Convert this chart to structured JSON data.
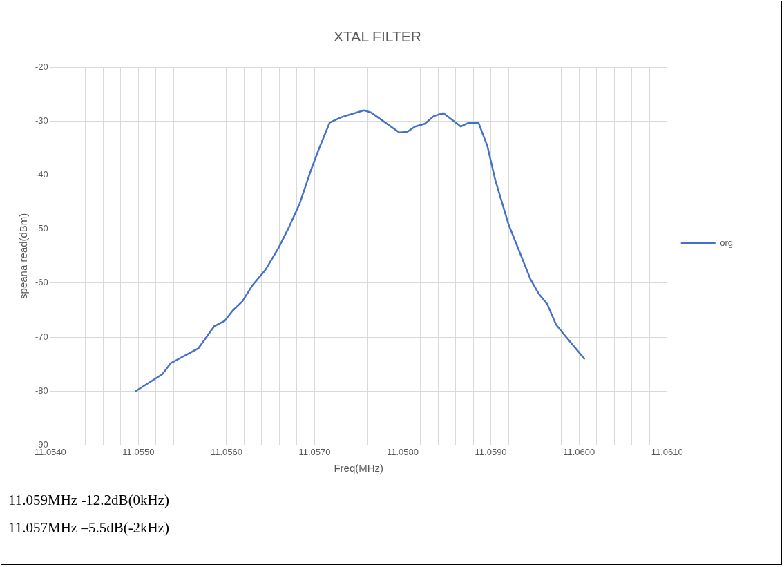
{
  "chart_data": {
    "type": "line",
    "title": "XTAL FILTER",
    "xlabel": "Freq(MHz)",
    "ylabel": "speana read(dBm)",
    "xlim": [
      11.054,
      11.061
    ],
    "xticks": [
      {
        "value": 11.054,
        "label": "11.0540"
      },
      {
        "value": 11.0542,
        "label": null
      },
      {
        "value": 11.0544,
        "label": null
      },
      {
        "value": 11.0546,
        "label": null
      },
      {
        "value": 11.0548,
        "label": null
      },
      {
        "value": 11.055,
        "label": "11.0550"
      },
      {
        "value": 11.0552,
        "label": null
      },
      {
        "value": 11.0554,
        "label": null
      },
      {
        "value": 11.0556,
        "label": null
      },
      {
        "value": 11.0558,
        "label": null
      },
      {
        "value": 11.056,
        "label": "11.0560"
      },
      {
        "value": 11.0562,
        "label": null
      },
      {
        "value": 11.0564,
        "label": null
      },
      {
        "value": 11.0566,
        "label": null
      },
      {
        "value": 11.0568,
        "label": null
      },
      {
        "value": 11.057,
        "label": "11.0570"
      },
      {
        "value": 11.0572,
        "label": null
      },
      {
        "value": 11.0574,
        "label": null
      },
      {
        "value": 11.0576,
        "label": null
      },
      {
        "value": 11.0578,
        "label": null
      },
      {
        "value": 11.058,
        "label": "11.0580"
      },
      {
        "value": 11.0582,
        "label": null
      },
      {
        "value": 11.0584,
        "label": null
      },
      {
        "value": 11.0586,
        "label": null
      },
      {
        "value": 11.0588,
        "label": null
      },
      {
        "value": 11.059,
        "label": "11.0590"
      },
      {
        "value": 11.0592,
        "label": null
      },
      {
        "value": 11.0594,
        "label": null
      },
      {
        "value": 11.0596,
        "label": null
      },
      {
        "value": 11.0598,
        "label": null
      },
      {
        "value": 11.06,
        "label": "11.0600"
      },
      {
        "value": 11.0602,
        "label": null
      },
      {
        "value": 11.0604,
        "label": null
      },
      {
        "value": 11.0606,
        "label": null
      },
      {
        "value": 11.0608,
        "label": null
      },
      {
        "value": 11.061,
        "label": "11.0610"
      }
    ],
    "ylim": [
      -90,
      -20
    ],
    "yticks": [
      -90,
      -80,
      -70,
      -60,
      -50,
      -40,
      -30,
      -20
    ],
    "x": [
      11.05497,
      11.05527,
      11.05537,
      11.05568,
      11.05586,
      11.05598,
      11.05607,
      11.05618,
      11.05629,
      11.05644,
      11.05659,
      11.05671,
      11.05683,
      11.05696,
      11.05705,
      11.05717,
      11.0573,
      11.05756,
      11.05764,
      11.05796,
      11.05805,
      11.05814,
      11.05825,
      11.05835,
      11.05846,
      11.05866,
      11.05875,
      11.05886,
      11.05896,
      11.05905,
      11.0592,
      11.05945,
      11.05954,
      11.05964,
      11.05974,
      11.05984,
      11.06006
    ],
    "series": [
      {
        "name": "org",
        "color": "#4472c4",
        "values": [
          -80.0,
          -76.9,
          -74.8,
          -72.1,
          -68.0,
          -67.0,
          -65.1,
          -63.4,
          -60.5,
          -57.6,
          -53.5,
          -49.6,
          -45.3,
          -39.0,
          -35.1,
          -30.3,
          -29.3,
          -28.0,
          -28.4,
          -32.1,
          -32.0,
          -31.0,
          -30.5,
          -29.1,
          -28.5,
          -31.0,
          -30.3,
          -30.3,
          -34.6,
          -40.9,
          -49.1,
          -59.3,
          -61.9,
          -63.9,
          -67.7,
          -69.7,
          -74.0
        ]
      }
    ],
    "grid": true,
    "legend": "right",
    "marker": "none",
    "line_style": "solid",
    "annotations": [
      "11.059MHz -12.2dB(0kHz)",
      "11.057MHz –5.5dB(-2kHz)"
    ]
  }
}
